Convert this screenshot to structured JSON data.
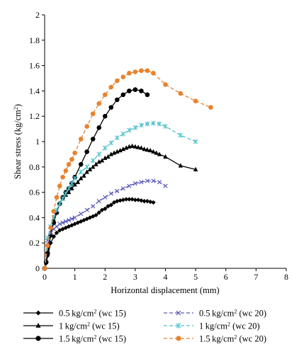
{
  "chart_data": {
    "type": "line",
    "title": "",
    "xlabel": "Horizontal displacement (mm)",
    "ylabel_main": "Shear stress (kg/cm",
    "ylabel_sup": "2",
    "ylabel_tail": ")",
    "xlim": [
      0,
      8
    ],
    "ylim": [
      0,
      2
    ],
    "x_ticks": [
      0,
      1,
      2,
      3,
      4,
      5,
      6,
      7,
      8
    ],
    "y_ticks": [
      "0",
      "0.2",
      "0.4",
      "0.6",
      "0.8",
      "1",
      "1.2",
      "1.4",
      "1.6",
      "1.8",
      "2"
    ],
    "grid": false,
    "legend_position": "bottom",
    "series": [
      {
        "name": "0.5 kg/cm2 (wc 15)",
        "legend_main": "0.5 kg/cm",
        "legend_sup": "2",
        "legend_tail": " (wc 15)",
        "color": "#000000",
        "dash": "solid",
        "marker": "diamond",
        "x": [
          0,
          0.05,
          0.1,
          0.2,
          0.3,
          0.4,
          0.5,
          0.6,
          0.7,
          0.8,
          0.9,
          1.0,
          1.1,
          1.2,
          1.3,
          1.4,
          1.5,
          1.6,
          1.7,
          1.8,
          1.9,
          2.0,
          2.1,
          2.2,
          2.3,
          2.4,
          2.5,
          2.6,
          2.7,
          2.8,
          2.9,
          3.0,
          3.1,
          3.2,
          3.3,
          3.4,
          3.5,
          3.6
        ],
        "y": [
          0,
          0.04,
          0.1,
          0.2,
          0.25,
          0.28,
          0.3,
          0.31,
          0.32,
          0.33,
          0.34,
          0.35,
          0.36,
          0.37,
          0.38,
          0.39,
          0.4,
          0.41,
          0.42,
          0.44,
          0.46,
          0.47,
          0.49,
          0.5,
          0.52,
          0.53,
          0.535,
          0.54,
          0.545,
          0.545,
          0.545,
          0.54,
          0.54,
          0.535,
          0.53,
          0.53,
          0.525,
          0.52
        ]
      },
      {
        "name": "1 kg/cm2 (wc 15)",
        "legend_main": "1 kg/cm",
        "legend_sup": "2",
        "legend_tail": " (wc 15)",
        "color": "#000000",
        "dash": "solid",
        "marker": "triangle",
        "x": [
          0,
          0.05,
          0.1,
          0.15,
          0.2,
          0.3,
          0.4,
          0.5,
          0.6,
          0.7,
          0.8,
          0.9,
          1.0,
          1.1,
          1.2,
          1.3,
          1.4,
          1.5,
          1.6,
          1.7,
          1.8,
          1.9,
          2.0,
          2.1,
          2.2,
          2.3,
          2.4,
          2.5,
          2.6,
          2.7,
          2.8,
          2.9,
          3.0,
          3.1,
          3.2,
          3.3,
          3.4,
          3.5,
          3.6,
          3.7,
          3.8,
          4.0,
          4.5,
          5.0
        ],
        "y": [
          0,
          0.06,
          0.12,
          0.2,
          0.28,
          0.38,
          0.45,
          0.51,
          0.55,
          0.58,
          0.6,
          0.63,
          0.66,
          0.68,
          0.71,
          0.73,
          0.76,
          0.78,
          0.8,
          0.82,
          0.84,
          0.85,
          0.87,
          0.88,
          0.9,
          0.91,
          0.92,
          0.93,
          0.94,
          0.95,
          0.96,
          0.965,
          0.96,
          0.955,
          0.95,
          0.94,
          0.935,
          0.93,
          0.92,
          0.91,
          0.9,
          0.88,
          0.81,
          0.78
        ]
      },
      {
        "name": "1.5 kg/cm2 (wc 15)",
        "legend_main": "1.5 kg/cm",
        "legend_sup": "2",
        "legend_tail": " (wc 15)",
        "color": "#000000",
        "dash": "solid",
        "marker": "circle",
        "x": [
          0,
          0.05,
          0.1,
          0.2,
          0.3,
          0.4,
          0.5,
          0.6,
          0.7,
          0.8,
          0.9,
          1.0,
          1.2,
          1.4,
          1.6,
          1.8,
          2.0,
          2.2,
          2.4,
          2.6,
          2.8,
          3.0,
          3.2,
          3.4
        ],
        "y": [
          0,
          0.05,
          0.12,
          0.26,
          0.36,
          0.44,
          0.51,
          0.56,
          0.6,
          0.63,
          0.67,
          0.72,
          0.82,
          0.92,
          1.02,
          1.11,
          1.2,
          1.27,
          1.33,
          1.37,
          1.4,
          1.41,
          1.4,
          1.37
        ]
      },
      {
        "name": "0.5 kg/cm2 (wc 20)",
        "legend_main": "0.5 kg/cm",
        "legend_sup": "2",
        "legend_tail": " (wc 20)",
        "color": "#5b5ab8",
        "dash": "dashed",
        "marker": "x",
        "x": [
          0,
          0.1,
          0.2,
          0.3,
          0.4,
          0.5,
          0.6,
          0.7,
          0.8,
          0.9,
          1.0,
          1.2,
          1.4,
          1.6,
          1.8,
          2.0,
          2.2,
          2.4,
          2.6,
          2.8,
          3.0,
          3.2,
          3.4,
          3.6,
          3.8,
          4.0
        ],
        "y": [
          0,
          0.22,
          0.28,
          0.31,
          0.33,
          0.35,
          0.36,
          0.37,
          0.38,
          0.39,
          0.4,
          0.43,
          0.46,
          0.49,
          0.53,
          0.56,
          0.59,
          0.61,
          0.63,
          0.65,
          0.67,
          0.68,
          0.69,
          0.69,
          0.68,
          0.65
        ]
      },
      {
        "name": "1 kg/cm2 (wc 20)",
        "legend_main": "1 kg/cm",
        "legend_sup": "2",
        "legend_tail": " (wc 20)",
        "color": "#4ec3cb",
        "dash": "dashed",
        "marker": "star",
        "x": [
          0,
          0.1,
          0.2,
          0.3,
          0.4,
          0.5,
          0.6,
          0.7,
          0.8,
          0.9,
          1.0,
          1.2,
          1.4,
          1.6,
          1.8,
          2.0,
          2.2,
          2.4,
          2.6,
          2.8,
          3.0,
          3.2,
          3.4,
          3.6,
          3.8,
          4.0,
          4.5,
          5.0
        ],
        "y": [
          0,
          0.24,
          0.33,
          0.4,
          0.46,
          0.51,
          0.55,
          0.59,
          0.63,
          0.67,
          0.71,
          0.76,
          0.8,
          0.85,
          0.9,
          0.95,
          0.99,
          1.03,
          1.06,
          1.09,
          1.11,
          1.13,
          1.14,
          1.145,
          1.14,
          1.12,
          1.05,
          1.0
        ]
      },
      {
        "name": "1.5 kg/cm2 (wc 20)",
        "legend_main": "1.5 kg/cm",
        "legend_sup": "2",
        "legend_tail": " (wc 20)",
        "color": "#e8822e",
        "dash": "dashed",
        "marker": "circle",
        "x": [
          0,
          0.1,
          0.2,
          0.3,
          0.4,
          0.5,
          0.6,
          0.7,
          0.8,
          0.9,
          1.0,
          1.2,
          1.4,
          1.6,
          1.8,
          2.0,
          2.2,
          2.4,
          2.6,
          2.8,
          3.0,
          3.2,
          3.4,
          3.6,
          4.0,
          4.5,
          5.0,
          5.5
        ],
        "y": [
          0,
          0.18,
          0.32,
          0.45,
          0.56,
          0.65,
          0.72,
          0.77,
          0.82,
          0.86,
          0.91,
          1.02,
          1.12,
          1.22,
          1.3,
          1.37,
          1.43,
          1.48,
          1.51,
          1.54,
          1.55,
          1.56,
          1.56,
          1.54,
          1.45,
          1.38,
          1.32,
          1.27
        ]
      }
    ]
  }
}
